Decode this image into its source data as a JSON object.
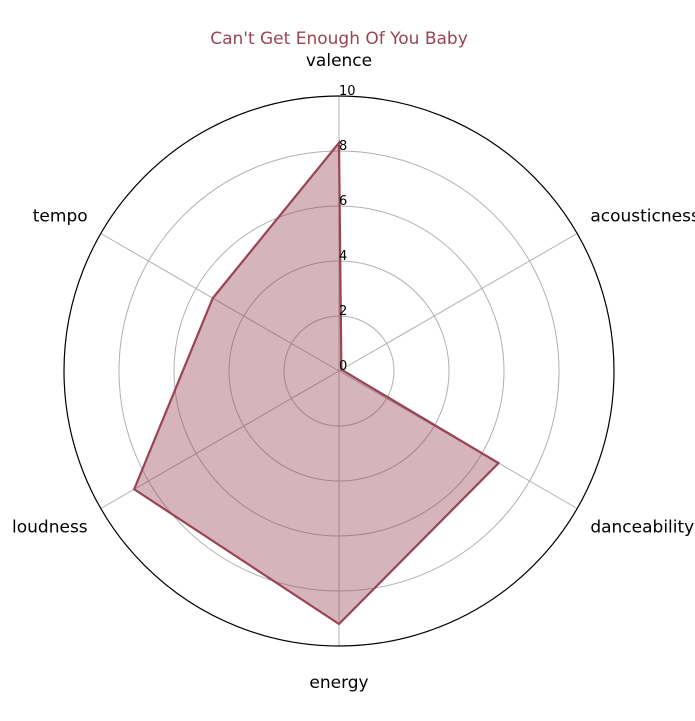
{
  "chart_data": {
    "type": "radar",
    "title": "Can't Get Enough Of You Baby",
    "axes": [
      "valence",
      "acousticness",
      "danceability",
      "energy",
      "loudness",
      "tempo"
    ],
    "series": [
      {
        "values": [
          8.3,
          0.1,
          6.7,
          9.2,
          8.6,
          5.3
        ],
        "color": "#994455",
        "fill_color": "#994455",
        "fill_opacity": 0.4
      }
    ],
    "rlim": [
      0,
      10
    ],
    "ticks": [
      "0",
      "2",
      "4",
      "6",
      "8",
      "10"
    ],
    "grid": true
  }
}
